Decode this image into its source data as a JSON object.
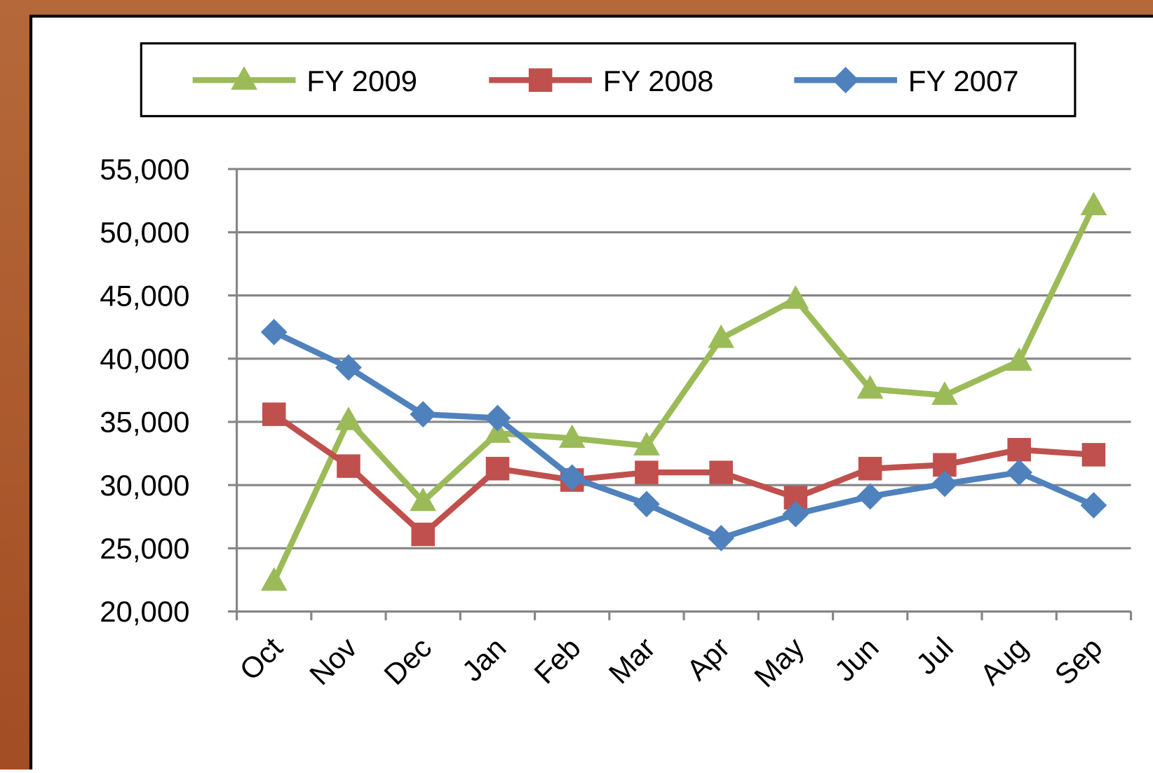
{
  "chart_data": {
    "type": "line",
    "categories": [
      "Oct",
      "Nov",
      "Dec",
      "Jan",
      "Feb",
      "Mar",
      "Apr",
      "May",
      "Jun",
      "Jul",
      "Aug",
      "Sep"
    ],
    "series": [
      {
        "name": "FY 2009",
        "color": "#9bbb59",
        "marker": "triangle",
        "values": [
          22400,
          35100,
          28700,
          34100,
          33700,
          33100,
          41600,
          44700,
          37600,
          37100,
          39800,
          52100
        ]
      },
      {
        "name": "FY 2008",
        "color": "#c0504d",
        "marker": "square",
        "values": [
          35600,
          31500,
          26100,
          31300,
          30400,
          31000,
          31000,
          29000,
          31300,
          31600,
          32800,
          32400
        ]
      },
      {
        "name": "FY 2007",
        "color": "#4f81bd",
        "marker": "diamond",
        "values": [
          42100,
          39300,
          35600,
          35300,
          30600,
          28500,
          25800,
          27700,
          29100,
          30100,
          31000,
          28400
        ]
      }
    ],
    "ylim": [
      20000,
      55000
    ],
    "yticks": [
      {
        "value": 20000,
        "label": "20,000"
      },
      {
        "value": 25000,
        "label": "25,000"
      },
      {
        "value": 30000,
        "label": "30,000"
      },
      {
        "value": 35000,
        "label": "35,000"
      },
      {
        "value": 40000,
        "label": "40,000"
      },
      {
        "value": 45000,
        "label": "45,000"
      },
      {
        "value": 50000,
        "label": "50,000"
      },
      {
        "value": 55000,
        "label": "55,000"
      }
    ],
    "grid": true,
    "legend": "top"
  }
}
